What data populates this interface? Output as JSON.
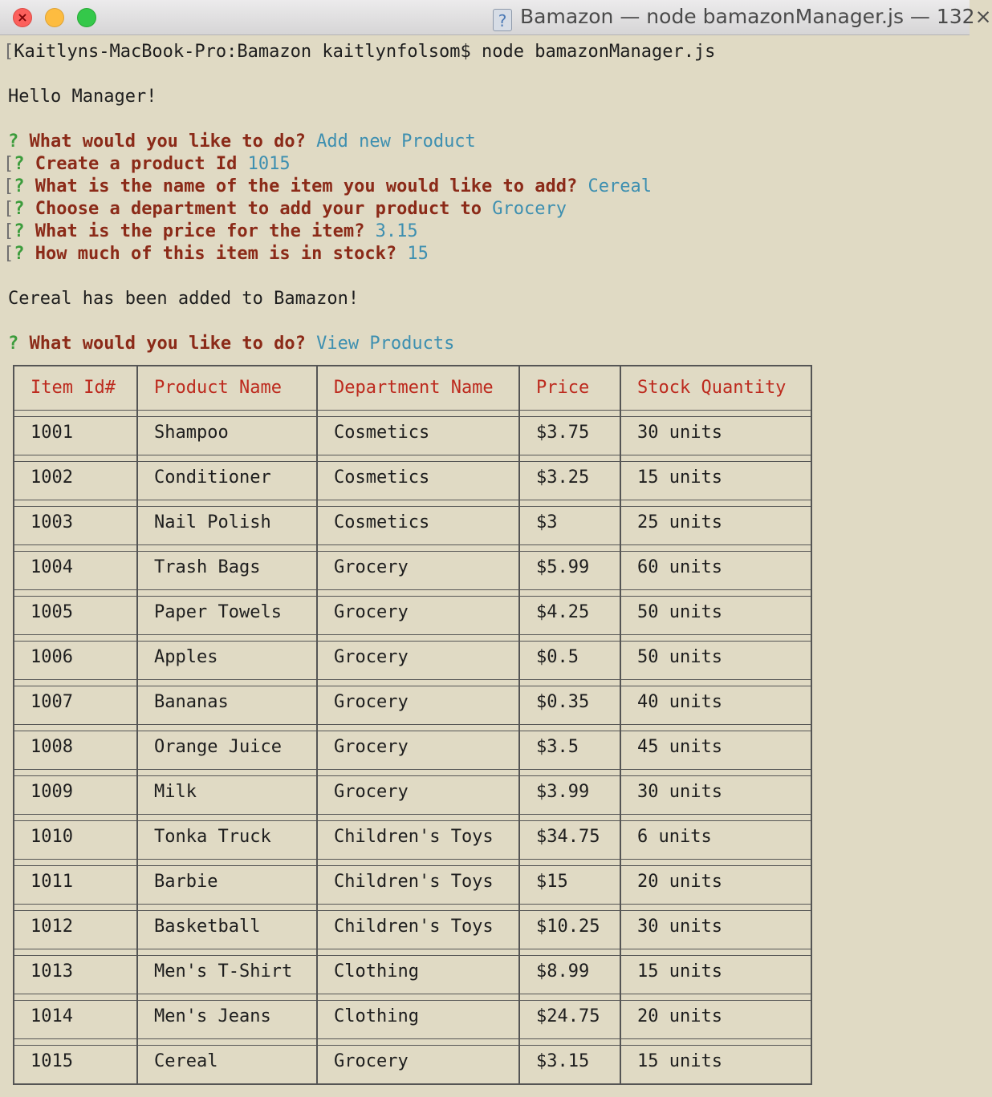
{
  "window": {
    "title": "Bamazon — node bamazonManager.js — 132×"
  },
  "terminal": {
    "command_line": "Kaitlyns-MacBook-Pro:Bamazon kaitlynfolsom$ node bamazonManager.js",
    "greeting": "Hello Manager!",
    "prompts": [
      {
        "question": "What would you like to do?",
        "answer": "Add new Product",
        "bracket": false
      },
      {
        "question": "Create a product Id",
        "answer": "1015",
        "bracket": true
      },
      {
        "question": "What is the name of the item you would like to add?",
        "answer": "Cereal",
        "bracket": true
      },
      {
        "question": "Choose a department to add your product to",
        "answer": "Grocery",
        "bracket": true
      },
      {
        "question": "What is the price for the item?",
        "answer": "3.15",
        "bracket": true
      },
      {
        "question": "How much of this item is in stock?",
        "answer": "15",
        "bracket": true
      }
    ],
    "added_message": "Cereal has been added to Bamazon!",
    "view_prompt": {
      "question": "What would you like to do?",
      "answer": "View Products"
    },
    "prompt_marker": "?"
  },
  "table": {
    "headers": [
      "Item Id#",
      "Product Name",
      "Department Name",
      "Price",
      "Stock Quantity"
    ],
    "rows": [
      [
        "1001",
        "Shampoo",
        "Cosmetics",
        "$3.75",
        "30 units"
      ],
      [
        "1002",
        "Conditioner",
        "Cosmetics",
        "$3.25",
        "15 units"
      ],
      [
        "1003",
        "Nail Polish",
        "Cosmetics",
        "$3",
        "25 units"
      ],
      [
        "1004",
        "Trash Bags",
        "Grocery",
        "$5.99",
        "60 units"
      ],
      [
        "1005",
        "Paper Towels",
        "Grocery",
        "$4.25",
        "50 units"
      ],
      [
        "1006",
        "Apples",
        "Grocery",
        "$0.5",
        "50 units"
      ],
      [
        "1007",
        "Bananas",
        "Grocery",
        "$0.35",
        "40 units"
      ],
      [
        "1008",
        "Orange Juice",
        "Grocery",
        "$3.5",
        "45 units"
      ],
      [
        "1009",
        "Milk",
        "Grocery",
        "$3.99",
        "30 units"
      ],
      [
        "1010",
        "Tonka Truck",
        "Children's Toys",
        "$34.75",
        "6 units"
      ],
      [
        "1011",
        "Barbie",
        "Children's Toys",
        "$15",
        "20 units"
      ],
      [
        "1012",
        "Basketball",
        "Children's Toys",
        "$10.25",
        "30 units"
      ],
      [
        "1013",
        "Men's T-Shirt",
        "Clothing",
        "$8.99",
        "15 units"
      ],
      [
        "1014",
        "Men's Jeans",
        "Clothing",
        "$24.75",
        "20 units"
      ],
      [
        "1015",
        "Cereal",
        "Grocery",
        "$3.15",
        "15 units"
      ]
    ]
  },
  "colors": {
    "background": "#e0dac4",
    "prompt_text": "#8b2a18",
    "question_mark": "#3c9c3c",
    "answer_text": "#3d8fb0",
    "header_text": "#bd2a1e"
  }
}
